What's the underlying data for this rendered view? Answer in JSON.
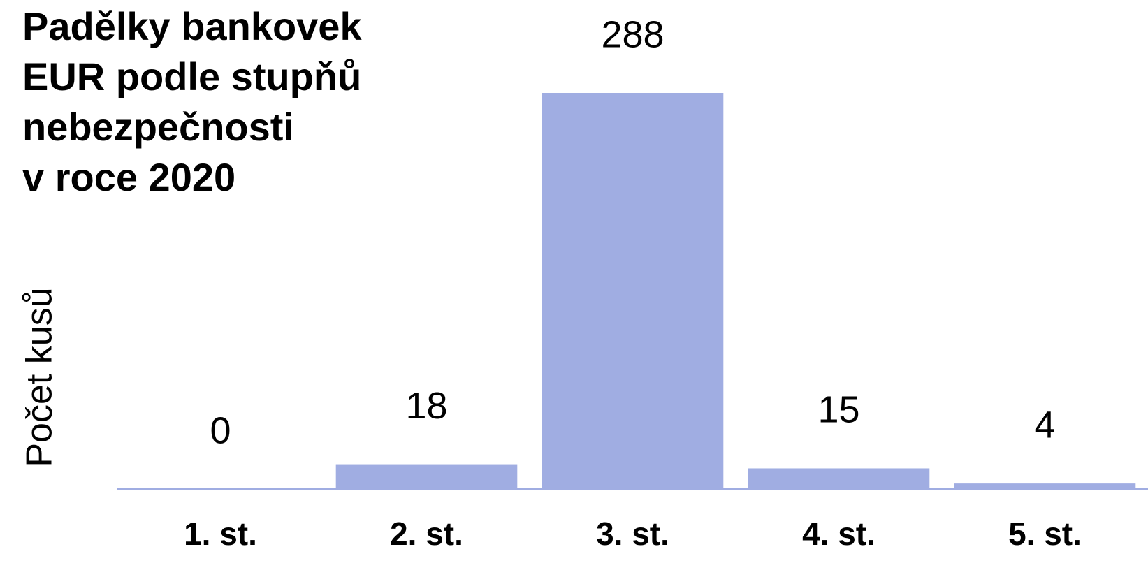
{
  "chart_data": {
    "type": "bar",
    "title": [
      "Padělky bankovek",
      "EUR podle stupňů",
      "nebezpečnosti",
      "v roce 2020"
    ],
    "y_label": "Počet kusů",
    "categories": [
      "1. st.",
      "2. st.",
      "3. st.",
      "4. st.",
      "5. st."
    ],
    "values": [
      0,
      18,
      288,
      15,
      4
    ],
    "color": "#a0ade2",
    "ylim": [
      0,
      288
    ]
  }
}
